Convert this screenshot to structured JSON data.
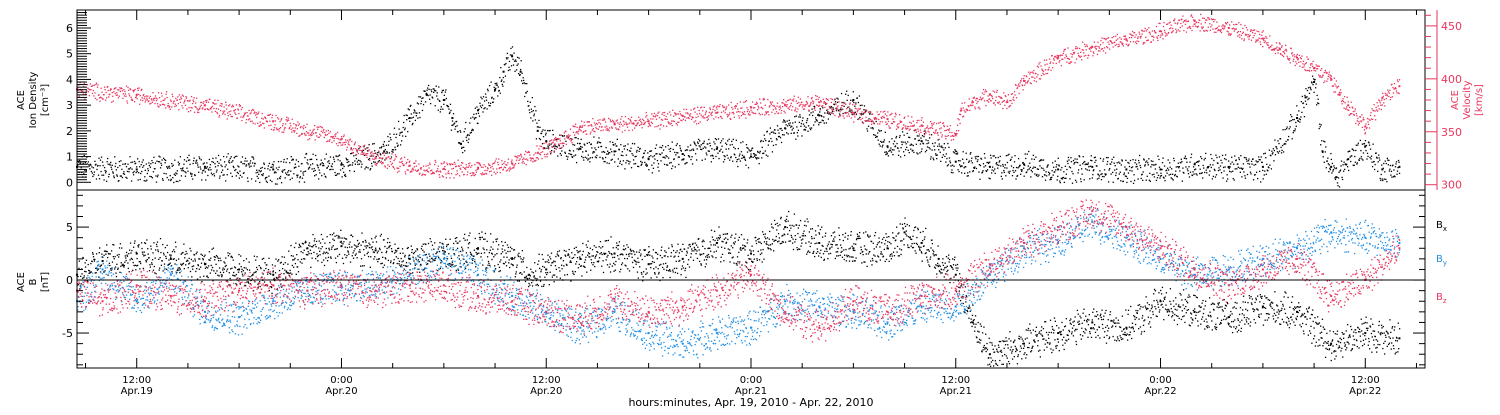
{
  "footer": "hours:minutes, Apr. 19, 2010 - Apr. 22, 2010",
  "colors": {
    "black": "#000000",
    "pink": "#e8365e",
    "blue": "#1f8fe6"
  },
  "chart_data": [
    {
      "type": "scatter",
      "panel": "top",
      "ylabel_left": [
        "ACE",
        "Ion Density",
        "[cm⁻³]"
      ],
      "ylabel_right": [
        "ACE",
        "Velocity",
        "[km/s]"
      ],
      "ylim_left": [
        -0.3,
        6.7
      ],
      "yticks_left": [
        "0",
        "1",
        "2",
        "3",
        "4",
        "5",
        "6"
      ],
      "ylim_right": [
        295,
        465
      ],
      "yticks_right": [
        "300",
        "350",
        "400",
        "450"
      ],
      "xlim_hours": [
        8.5,
        87.5
      ],
      "series": [
        {
          "axis": "left",
          "color": "#000000",
          "x": [
            8.5,
            12,
            16,
            20,
            24,
            26.5,
            28,
            29,
            30,
            30.5,
            31,
            32,
            33,
            33.5,
            34,
            34.5,
            35.5,
            36,
            38,
            40,
            42,
            44,
            46,
            48,
            50,
            52,
            54,
            56,
            58,
            60,
            62,
            64,
            66,
            68,
            70,
            72,
            74,
            76,
            78,
            80,
            80.5,
            81,
            81.5,
            82,
            82.3,
            83,
            84,
            85,
            86
          ],
          "y": [
            0.6,
            0.5,
            0.6,
            0.5,
            0.7,
            1.2,
            2.5,
            3.4,
            3.2,
            2.5,
            1.5,
            2.8,
            3.6,
            4.3,
            4.9,
            4.3,
            2.0,
            1.6,
            1.3,
            1.2,
            0.9,
            1.1,
            1.3,
            1.0,
            2.1,
            2.6,
            3.2,
            1.4,
            1.6,
            0.8,
            0.6,
            0.7,
            0.5,
            0.6,
            0.5,
            0.5,
            0.7,
            0.6,
            0.6,
            2.5,
            3.3,
            3.9,
            1.2,
            0.6,
            0.2,
            0.9,
            1.4,
            0.5,
            0.6
          ]
        },
        {
          "axis": "right",
          "color": "#e8365e",
          "x": [
            8.5,
            12,
            16,
            20,
            24,
            26,
            28,
            30,
            32,
            34,
            35.5,
            36.5,
            38,
            40,
            42,
            44,
            46,
            48,
            50,
            52,
            54,
            56,
            58,
            60,
            60.3,
            61,
            62,
            63,
            64,
            66,
            68,
            70,
            72,
            74,
            76,
            78,
            79,
            80,
            81,
            82,
            82.5,
            83,
            84,
            85,
            86
          ],
          "y": [
            390,
            385,
            375,
            360,
            343,
            325,
            318,
            315,
            316,
            320,
            330,
            338,
            355,
            357,
            360,
            365,
            368,
            373,
            375,
            378,
            368,
            362,
            356,
            348,
            370,
            378,
            385,
            378,
            398,
            420,
            430,
            437,
            445,
            455,
            448,
            438,
            428,
            420,
            410,
            400,
            385,
            375,
            355,
            382,
            393
          ]
        }
      ]
    },
    {
      "type": "scatter",
      "panel": "bottom",
      "ylabel_left": [
        "ACE",
        "B",
        "[nT]"
      ],
      "ylim": [
        -8.3,
        8.5
      ],
      "yticks": [
        "-5",
        "0",
        "5"
      ],
      "zero_line": true,
      "xlim_hours": [
        8.5,
        87.5
      ],
      "xtick_hours": [
        12,
        24,
        36,
        48,
        60,
        72,
        84
      ],
      "xticks": [
        {
          "time": "12:00",
          "date": "Apr.19"
        },
        {
          "time": "0:00",
          "date": "Apr.20"
        },
        {
          "time": "12:00",
          "date": "Apr.20"
        },
        {
          "time": "0:00",
          "date": "Apr.21"
        },
        {
          "time": "12:00",
          "date": "Apr.21"
        },
        {
          "time": "0:00",
          "date": "Apr.22"
        },
        {
          "time": "12:00",
          "date": "Apr.22"
        }
      ],
      "legend": [
        "Bx",
        "By",
        "Bz"
      ],
      "series": [
        {
          "name": "Bx",
          "color": "#000000",
          "x": [
            8.5,
            10,
            12,
            14,
            16,
            18,
            20,
            22,
            24,
            26,
            28,
            30,
            32,
            34,
            35,
            36,
            38,
            40,
            42,
            44,
            46,
            48,
            50,
            52,
            54,
            56,
            57,
            58,
            59,
            60,
            61,
            62,
            64,
            66,
            68,
            70,
            72,
            74,
            76,
            78,
            80,
            82,
            84,
            86
          ],
          "y": [
            0.5,
            1.8,
            2.5,
            2.0,
            1.5,
            1.0,
            0.5,
            3.0,
            3.2,
            2.8,
            2.0,
            2.5,
            3.0,
            2.0,
            0.5,
            1.0,
            2.0,
            2.5,
            1.5,
            2.0,
            3.5,
            2.5,
            5.0,
            3.5,
            3.0,
            3.0,
            4.5,
            3.5,
            2.0,
            0.5,
            -4.0,
            -7.0,
            -6.0,
            -5.0,
            -4.0,
            -4.5,
            -2.0,
            -3.0,
            -3.5,
            -2.5,
            -3.0,
            -6.0,
            -5.0,
            -5.5
          ]
        },
        {
          "name": "By",
          "color": "#1f8fe6",
          "x": [
            8.5,
            10,
            12,
            14,
            16,
            18,
            20,
            22,
            24,
            26,
            28,
            30,
            32,
            34,
            36,
            38,
            40,
            42,
            44,
            46,
            48,
            50,
            52,
            54,
            56,
            58,
            60,
            62,
            64,
            66,
            68,
            70,
            72,
            74,
            76,
            78,
            80,
            82,
            84,
            86
          ],
          "y": [
            -2.0,
            1.0,
            -2.0,
            0.5,
            -3.0,
            -3.5,
            -2.0,
            -1.0,
            -0.5,
            -0.5,
            0.5,
            2.0,
            0.5,
            -1.5,
            -3.0,
            -4.5,
            -3.0,
            -5.0,
            -6.0,
            -5.0,
            -4.5,
            -2.0,
            -2.5,
            -3.0,
            -4.0,
            -2.5,
            -2.5,
            0.5,
            3.0,
            3.5,
            5.5,
            4.0,
            2.0,
            0.5,
            1.0,
            2.0,
            3.0,
            4.5,
            4.0,
            3.5
          ]
        },
        {
          "name": "Bz",
          "color": "#e8365e",
          "x": [
            8.5,
            10,
            12,
            14,
            16,
            18,
            20,
            22,
            24,
            26,
            28,
            30,
            32,
            34,
            36,
            38,
            40,
            42,
            44,
            46,
            48,
            50,
            52,
            54,
            56,
            58,
            60,
            62,
            64,
            66,
            68,
            70,
            72,
            74,
            76,
            78,
            80,
            82,
            84,
            86
          ],
          "y": [
            -1.0,
            -2.0,
            -0.5,
            -1.5,
            -2.0,
            -1.0,
            -0.5,
            -1.0,
            -0.5,
            -1.0,
            -0.5,
            -0.5,
            -1.5,
            -2.0,
            -3.0,
            -3.5,
            -2.0,
            -3.0,
            -2.5,
            -1.0,
            0.5,
            -3.0,
            -4.5,
            -2.0,
            -3.0,
            -1.5,
            -1.0,
            1.5,
            3.5,
            5.0,
            6.5,
            5.0,
            3.0,
            1.0,
            -0.5,
            1.0,
            2.0,
            -1.5,
            0.0,
            3.0
          ]
        }
      ]
    }
  ]
}
